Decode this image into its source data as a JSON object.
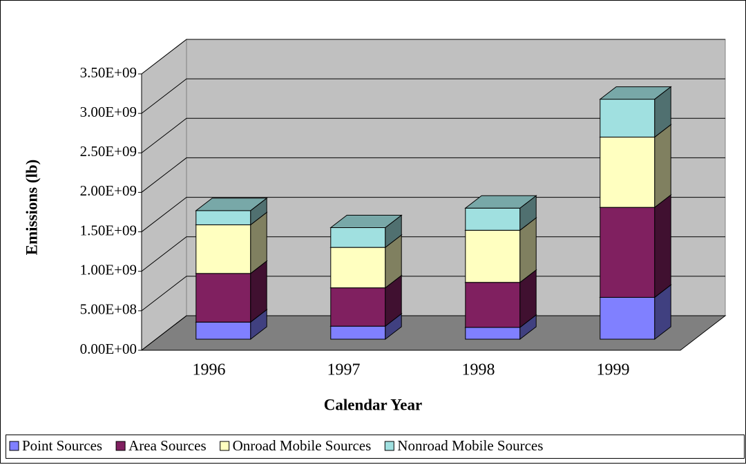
{
  "chart_data": {
    "type": "bar3d_stacked",
    "x_label": "Calendar Year",
    "y_label": "Emissions (lb)",
    "categories": [
      "1996",
      "1997",
      "1998",
      "1999"
    ],
    "series": [
      {
        "name": "Point Sources",
        "color": "#8080ff",
        "values": [
          217000000,
          165000000,
          150000000,
          530000000
        ]
      },
      {
        "name": "Area Sources",
        "color": "#802060",
        "values": [
          616000000,
          486000000,
          570000000,
          1140000000
        ]
      },
      {
        "name": "Onroad Mobile Sources",
        "color": "#ffffc0",
        "values": [
          616000000,
          512000000,
          660000000,
          890000000
        ]
      },
      {
        "name": "Nonroad Mobile Sources",
        "color": "#a0e0e0",
        "values": [
          180000000,
          250000000,
          280000000,
          480000000
        ]
      }
    ],
    "ylim": [
      0,
      3500000000
    ],
    "yticks": [
      {
        "value": 0,
        "label": "0.00E+00"
      },
      {
        "value": 500000000,
        "label": "5.00E+08"
      },
      {
        "value": 1000000000,
        "label": "1.00E+09"
      },
      {
        "value": 1500000000,
        "label": "1.50E+09"
      },
      {
        "value": 2000000000,
        "label": "2.00E+09"
      },
      {
        "value": 2500000000,
        "label": "2.50E+09"
      },
      {
        "value": 3000000000,
        "label": "3.00E+09"
      },
      {
        "value": 3500000000,
        "label": "3.50E+09"
      }
    ],
    "grid": true
  }
}
